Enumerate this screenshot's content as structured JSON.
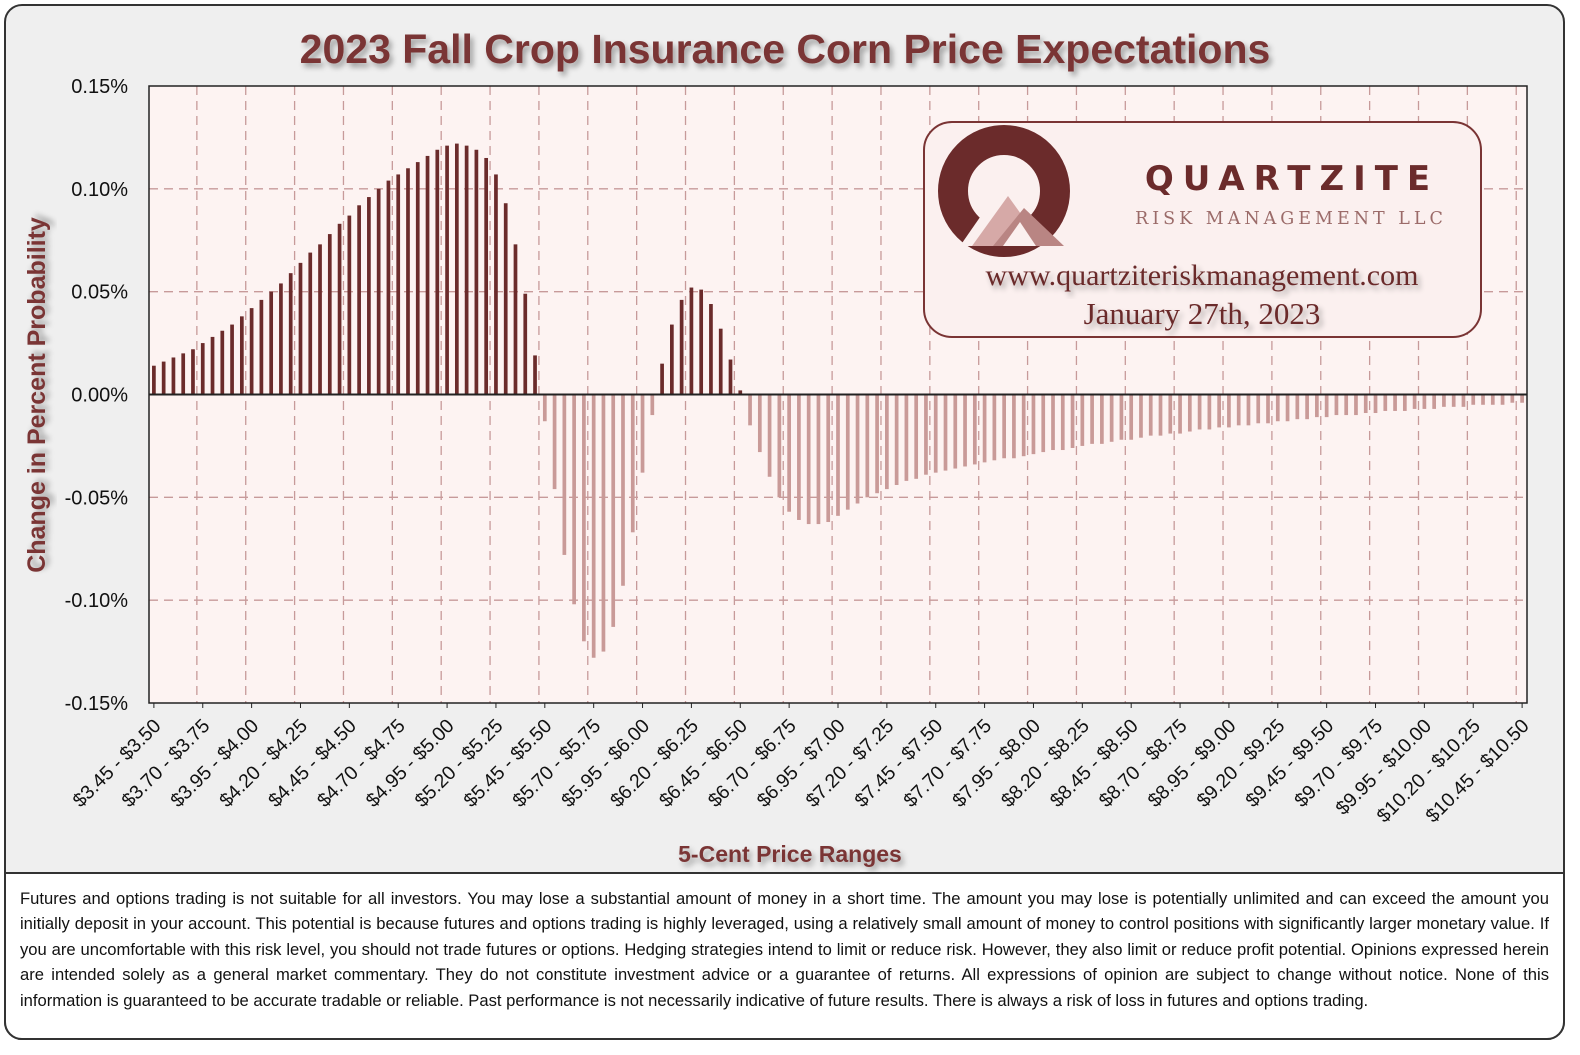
{
  "chart_data": {
    "type": "bar",
    "title": "2023 Fall Crop Insurance Corn Price Expectations",
    "xlabel": "5-Cent Price Ranges",
    "ylabel": "Change in Percent  Probability",
    "ylim": [
      -0.15,
      0.15
    ],
    "y_ticks": [
      "0.15%",
      "0.10%",
      "0.05%",
      "0.00%",
      "-0.05%",
      "-0.10%",
      "-0.15%"
    ],
    "x_tick_labels": [
      "$3.45 - $3.50",
      "$3.70 - $3.75",
      "$3.95 - $4.00",
      "$4.20 - $4.25",
      "$4.45 - $4.50",
      "$4.70 - $4.75",
      "$4.95 - $5.00",
      "$5.20 - $5.25",
      "$5.45 - $5.50",
      "$5.70 - $5.75",
      "$5.95 - $6.00",
      "$6.20 - $6.25",
      "$6.45 - $6.50",
      "$6.70 - $6.75",
      "$6.95 - $7.00",
      "$7.20 - $7.25",
      "$7.45 - $7.50",
      "$7.70 - $7.75",
      "$7.95 - $8.00",
      "$8.20 - $8.25",
      "$8.45 - $8.50",
      "$8.70 - $8.75",
      "$8.95 - $9.00",
      "$9.20 - $9.25",
      "$9.45 - $9.50",
      "$9.70 - $9.75",
      "$9.95 - $10.00",
      "$10.20 - $10.25",
      "$10.45 - $10.50"
    ],
    "first_range_low": 3.45,
    "range_step": 0.05,
    "values": [
      0.014,
      0.016,
      0.018,
      0.02,
      0.022,
      0.025,
      0.028,
      0.031,
      0.034,
      0.038,
      0.042,
      0.046,
      0.05,
      0.054,
      0.059,
      0.064,
      0.069,
      0.073,
      0.078,
      0.083,
      0.087,
      0.092,
      0.096,
      0.1,
      0.104,
      0.107,
      0.11,
      0.113,
      0.116,
      0.119,
      0.121,
      0.122,
      0.121,
      0.119,
      0.115,
      0.107,
      0.093,
      0.073,
      0.049,
      0.019,
      -0.013,
      -0.046,
      -0.078,
      -0.102,
      -0.12,
      -0.128,
      -0.125,
      -0.113,
      -0.093,
      -0.067,
      -0.038,
      -0.01,
      0.015,
      0.034,
      0.046,
      0.052,
      0.051,
      0.044,
      0.032,
      0.017,
      0.002,
      -0.015,
      -0.028,
      -0.04,
      -0.05,
      -0.057,
      -0.061,
      -0.063,
      -0.063,
      -0.062,
      -0.059,
      -0.056,
      -0.053,
      -0.05,
      -0.048,
      -0.046,
      -0.044,
      -0.042,
      -0.041,
      -0.039,
      -0.038,
      -0.037,
      -0.036,
      -0.035,
      -0.034,
      -0.033,
      -0.032,
      -0.031,
      -0.031,
      -0.03,
      -0.029,
      -0.028,
      -0.027,
      -0.027,
      -0.026,
      -0.025,
      -0.024,
      -0.024,
      -0.023,
      -0.022,
      -0.022,
      -0.021,
      -0.02,
      -0.02,
      -0.019,
      -0.019,
      -0.018,
      -0.017,
      -0.017,
      -0.016,
      -0.016,
      -0.015,
      -0.015,
      -0.014,
      -0.014,
      -0.013,
      -0.013,
      -0.012,
      -0.012,
      -0.011,
      -0.011,
      -0.01,
      -0.01,
      -0.01,
      -0.009,
      -0.009,
      -0.008,
      -0.008,
      -0.008,
      -0.007,
      -0.007,
      -0.007,
      -0.006,
      -0.006,
      -0.006,
      -0.005,
      -0.005,
      -0.005,
      -0.005,
      -0.004,
      -0.004
    ],
    "colors": {
      "positive": "#6b2b2b",
      "negative": "#c99a98",
      "title": "#7a3434",
      "grid": "#c79a9a",
      "plot_bg": "#fdf3f2"
    }
  },
  "logo": {
    "company": "QUARTZITE",
    "subtitle": "RISK MANAGEMENT LLC",
    "website": "www.quartziteriskmanagement.com",
    "date": "January 27th, 2023"
  },
  "disclaimer": "Futures and options trading is not suitable for all investors. You may lose a substantial amount of money in a short time. The amount you may lose is potentially unlimited and can exceed the amount you initially deposit in your account. This potential is because futures and options trading is highly leveraged, using a relatively small amount of money to control positions with significantly larger monetary value. If you are uncomfortable with this risk level, you should not trade futures or options. Hedging strategies intend to limit or reduce risk. However, they also limit or reduce profit potential. Opinions expressed herein are intended solely as a general market commentary. They do not constitute investment advice or a guarantee of returns. All expressions of opinion are subject to change without notice. None of this information is guaranteed to be accurate tradable or reliable. Past performance is not necessarily indicative of future results. There is always a risk of loss in futures and options trading."
}
